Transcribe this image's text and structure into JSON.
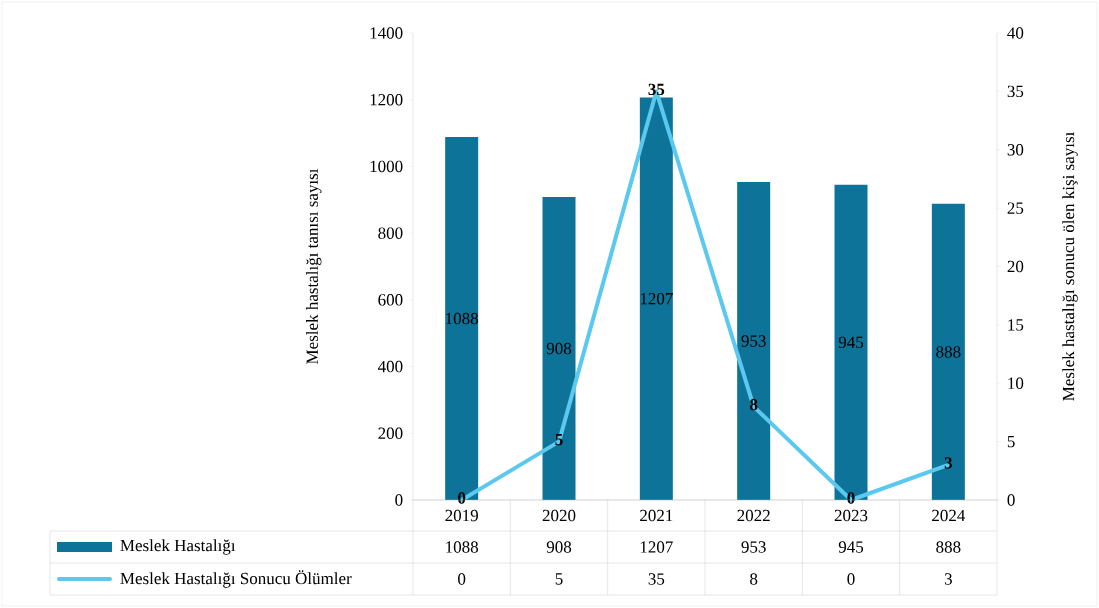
{
  "chart_data": {
    "type": "bar",
    "categories": [
      "2019",
      "2020",
      "2021",
      "2022",
      "2023",
      "2024"
    ],
    "series": [
      {
        "name": "Meslek Hastalığı",
        "color": "#0e7399",
        "values": [
          1088,
          908,
          1207,
          953,
          945,
          888
        ],
        "value_labels": [
          "1088",
          "908",
          "1207",
          "953",
          "945",
          "888"
        ]
      },
      {
        "name": "Meslek Hastalığı Sonucu Ölümler",
        "type": "line",
        "axis": "y2",
        "color": "#5bc8f0",
        "values": [
          0,
          5,
          35,
          8,
          0,
          3
        ],
        "value_labels": [
          "0",
          "5",
          "35",
          "8",
          "0",
          "3"
        ]
      }
    ],
    "ylabel": "Meslek hastalığı tanısı sayısı",
    "y2label": "Meslek hastalığı sonucu ölen kişi sayısı",
    "ylim": [
      0,
      1400
    ],
    "yticks": [
      0,
      200,
      400,
      600,
      800,
      1000,
      1200,
      1400
    ],
    "y2lim": [
      0,
      40
    ],
    "y2ticks": [
      0,
      5,
      10,
      15,
      20,
      25,
      30,
      35,
      40
    ],
    "data_labels": true,
    "legend": "bottom"
  }
}
